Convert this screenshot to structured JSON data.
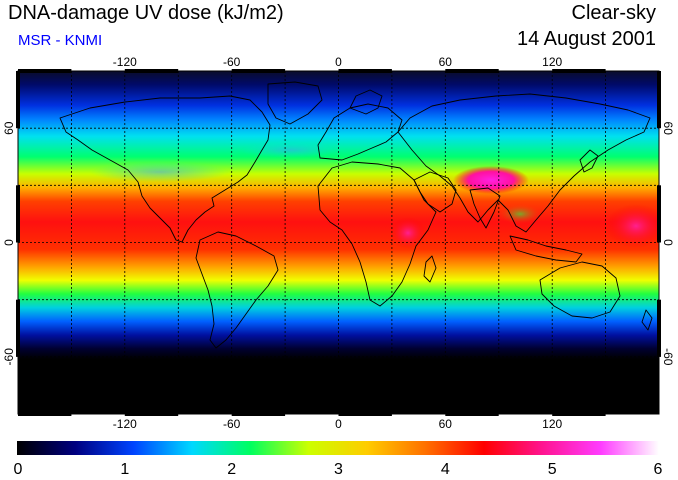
{
  "header": {
    "title": "DNA-damage UV dose (kJ/m2)",
    "source": "MSR - KNMI",
    "condition": "Clear-sky",
    "date": "14 August 2001"
  },
  "map": {
    "lon_ticks": [
      "-120",
      "-60",
      "0",
      "60",
      "120"
    ],
    "lat_ticks": [
      "60",
      "0",
      "-60"
    ],
    "lon_range": [
      -180,
      180
    ],
    "lat_range": [
      -90,
      90
    ],
    "grid": true,
    "grid_spacing_deg": 30
  },
  "colorbar": {
    "min": 0,
    "max": 6,
    "labels": [
      "0",
      "1",
      "2",
      "3",
      "4",
      "5",
      "6"
    ],
    "stops": [
      "#000000",
      "#000080",
      "#0044ff",
      "#00d8ff",
      "#00ff60",
      "#ccff00",
      "#ffcc00",
      "#ff7000",
      "#ff0000",
      "#ff1490",
      "#ff3cff",
      "#ffffff"
    ]
  }
}
